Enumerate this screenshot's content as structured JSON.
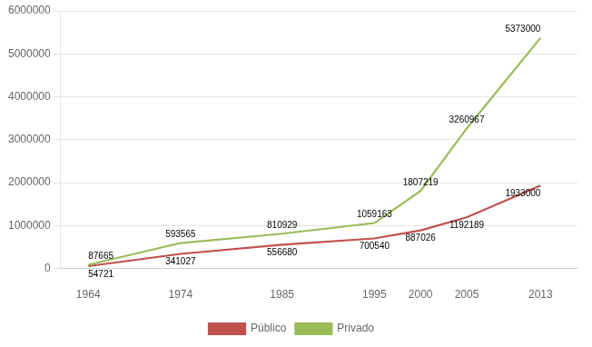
{
  "chart_data": {
    "type": "line",
    "x": [
      1964,
      1974,
      1985,
      1995,
      2000,
      2005,
      2013
    ],
    "series": [
      {
        "name": "Privado",
        "color": "#9bbb59",
        "values": [
          87665,
          593565,
          810929,
          1059163,
          1807219,
          3260967,
          5373000
        ]
      },
      {
        "name": "Público",
        "color": "#c0504d",
        "values": [
          54721,
          341027,
          556680,
          700540,
          887026,
          1192189,
          1933000
        ]
      }
    ],
    "xlim": [
      1961,
      2017
    ],
    "xticks": [
      1964,
      1974,
      1985,
      1995,
      2000,
      2005,
      2013
    ],
    "ylim": [
      0,
      6000000
    ],
    "yticks": [
      0,
      1000000,
      2000000,
      3000000,
      4000000,
      5000000,
      6000000
    ],
    "grid": true,
    "legend": "bottom",
    "marker": "none",
    "data_labels": true
  }
}
